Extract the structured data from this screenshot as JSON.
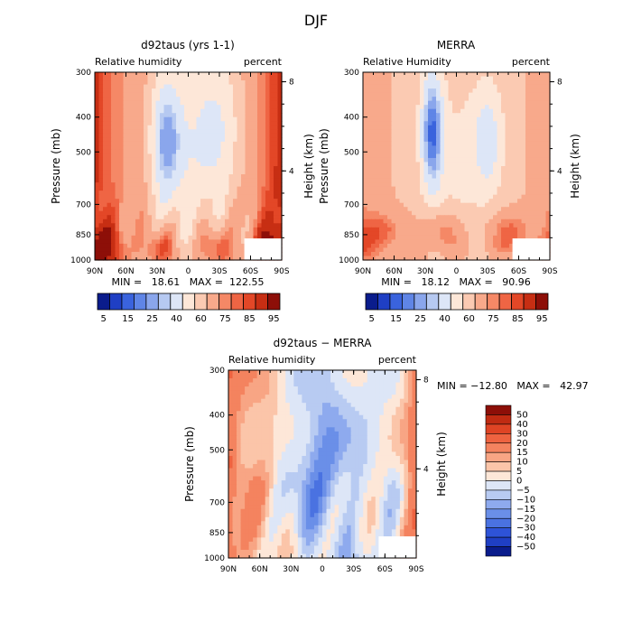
{
  "figure": {
    "title": "DJF"
  },
  "palette": {
    "rh": [
      "#0a1c8c",
      "#1f3fc4",
      "#3a63dd",
      "#5f85e6",
      "#8aa6ec",
      "#b6c9f1",
      "#dde6f7",
      "#fde7d8",
      "#fbcab2",
      "#f8a98b",
      "#f58866",
      "#ef6544",
      "#e34727",
      "#c72e13",
      "#8d0f08"
    ],
    "diff": [
      "#0a1c8c",
      "#1f3fc4",
      "#2e53d8",
      "#4a72e1",
      "#6a8fe8",
      "#8eaaee",
      "#b8cbf2",
      "#dde6f7",
      "#fde7d8",
      "#fbc5a9",
      "#f8a584",
      "#f4835f",
      "#ee6340",
      "#df4424",
      "#c02b12",
      "#8d0f08"
    ]
  },
  "chart_data": [
    {
      "type": "heatmap",
      "title": "d92taus (yrs 1-1)",
      "left_label": "Relative humidity",
      "right_label": "percent",
      "ylabel": "Pressure (mb)",
      "ylabel_right": "Height (km)",
      "x_ticks": [
        "90N",
        "60N",
        "30N",
        "0",
        "30S",
        "60S",
        "90S"
      ],
      "y_ticks": [
        "300",
        "400",
        "500",
        "700",
        "850",
        "1000"
      ],
      "height_ticks": [
        "8",
        "4"
      ],
      "xlim": [
        90,
        -90
      ],
      "ylim": [
        1000,
        300
      ],
      "stats": "MIN =   18.61   MAX =  122.55",
      "min": 18.61,
      "max": 122.55,
      "colorbar_labels": [
        "5",
        "15",
        "25",
        "40",
        "60",
        "75",
        "85",
        "95"
      ],
      "shows_colorbar": true,
      "field": "model"
    },
    {
      "type": "heatmap",
      "title": "MERRA",
      "left_label": "Relative Humidity",
      "right_label": "percent",
      "ylabel": "Pressure (mb)",
      "ylabel_right": "Height (km)",
      "x_ticks": [
        "90N",
        "60N",
        "30N",
        "0",
        "30S",
        "60S",
        "90S"
      ],
      "y_ticks": [
        "300",
        "400",
        "500",
        "700",
        "850",
        "1000"
      ],
      "height_ticks": [
        "8",
        "4"
      ],
      "xlim": [
        90,
        -90
      ],
      "ylim": [
        1000,
        300
      ],
      "stats": "MIN =   18.12   MAX =   90.96",
      "min": 18.12,
      "max": 90.96,
      "colorbar_labels": [
        "5",
        "15",
        "25",
        "40",
        "60",
        "75",
        "85",
        "95"
      ],
      "shows_colorbar": true,
      "field": "merra"
    },
    {
      "type": "heatmap",
      "title": "d92taus − MERRA",
      "left_label": "Relative humidity",
      "right_label": "percent",
      "ylabel": "Pressure (mb)",
      "ylabel_right": "Height (km)",
      "x_ticks": [
        "90N",
        "60N",
        "30N",
        "0",
        "30S",
        "60S",
        "90S"
      ],
      "y_ticks": [
        "300",
        "400",
        "500",
        "700",
        "850",
        "1000"
      ],
      "height_ticks": [
        "8",
        "4"
      ],
      "xlim": [
        90,
        -90
      ],
      "ylim": [
        1000,
        300
      ],
      "stats": "MIN = −12.80   MAX =   42.97",
      "min": -12.8,
      "max": 42.97,
      "colorbar_labels": [
        "50",
        "40",
        "30",
        "20",
        "15",
        "10",
        "5",
        "0",
        "−5",
        "−10",
        "−15",
        "−20",
        "−30",
        "−40",
        "−50"
      ],
      "shows_colorbar": true,
      "field": "diff"
    }
  ]
}
